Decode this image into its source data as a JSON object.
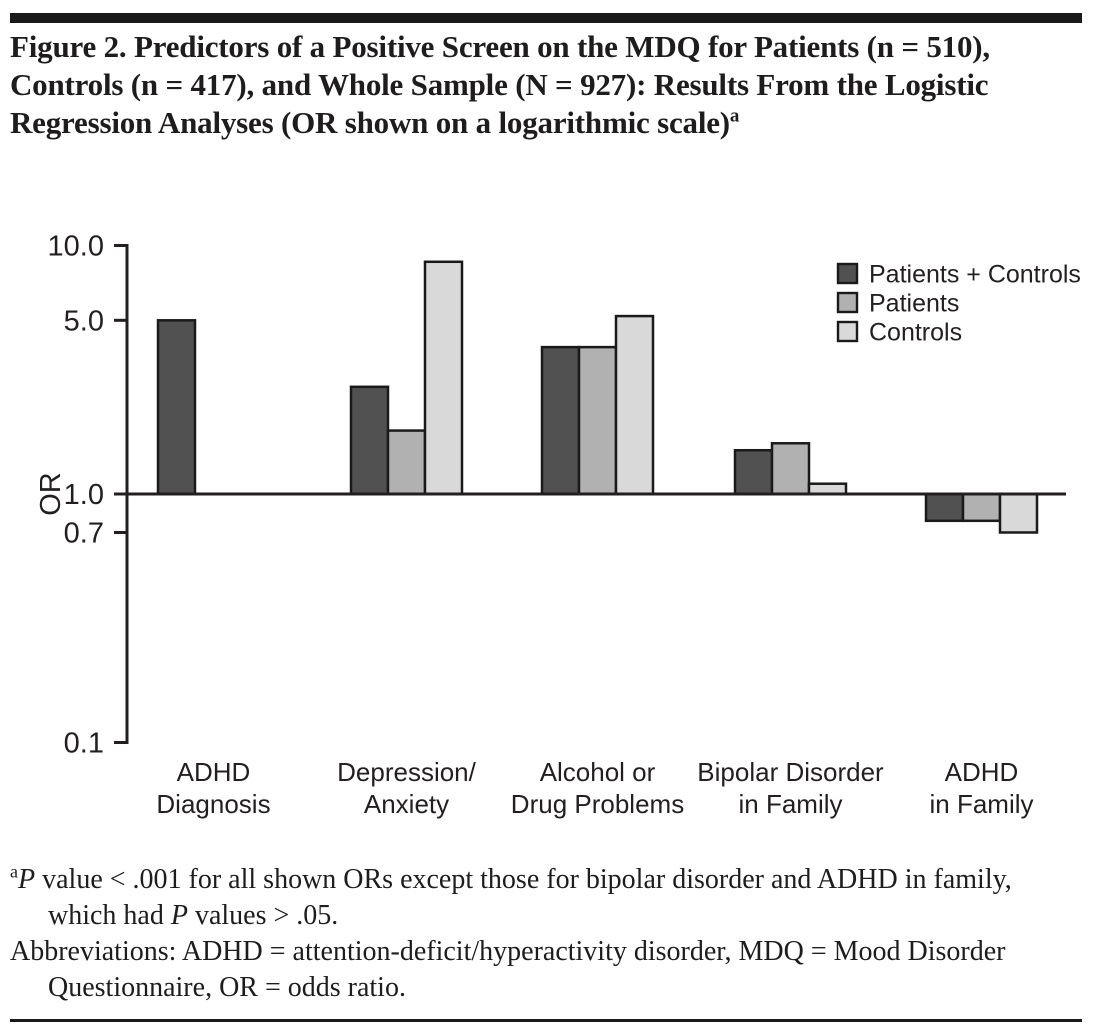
{
  "figure": {
    "title": "Figure 2. Predictors of a Positive Screen on the MDQ for Patients (n = 510), Controls (n = 417), and Whole Sample (N = 927): Results From the Logistic Regression Analyses (OR shown on a logarithmic scale)",
    "title_superscript": "a"
  },
  "chart_data": {
    "type": "bar",
    "y_scale": "log",
    "ylabel": "OR",
    "xlabel": "",
    "title": "",
    "yticks": [
      "10.0",
      "5.0",
      "1.0",
      "0.7",
      "0.1"
    ],
    "ylim": [
      0.1,
      10.0
    ],
    "baseline": 1.0,
    "grid": false,
    "legend_position": "top-right",
    "categories": [
      [
        "ADHD",
        "Diagnosis"
      ],
      [
        "Depression/",
        "Anxiety"
      ],
      [
        "Alcohol or",
        "Drug Problems"
      ],
      [
        "Bipolar Disorder",
        "in Family"
      ],
      [
        "ADHD",
        "in Family"
      ]
    ],
    "series": [
      {
        "name": "Patients + Controls",
        "color": "#515151",
        "values": [
          5.0,
          2.7,
          3.9,
          1.5,
          0.78
        ]
      },
      {
        "name": "Patients",
        "color": "#b1b1b1",
        "values": [
          null,
          1.8,
          3.9,
          1.6,
          0.78
        ]
      },
      {
        "name": "Controls",
        "color": "#d9d9d9",
        "values": [
          null,
          8.6,
          5.2,
          1.1,
          0.7
        ]
      }
    ]
  },
  "footnotes": {
    "note_a": {
      "segments": [
        {
          "style": "sup",
          "text": "a"
        },
        {
          "style": "italic",
          "text": "P"
        },
        {
          "style": "normal",
          "text": " value < .001 for all shown ORs except those for bipolar disorder and ADHD in family, which had "
        },
        {
          "style": "italic",
          "text": "P"
        },
        {
          "style": "normal",
          "text": " values > .05."
        }
      ]
    },
    "abbreviations": "Abbreviations: ADHD = attention-deficit/hyperactivity disorder, MDQ = Mood Disorder Questionnaire, OR = odds ratio."
  },
  "colors": {
    "bar_border": "#1a1a1a",
    "axis": "#231f20",
    "rule": "#1a1a1a",
    "text": "#231f20"
  }
}
